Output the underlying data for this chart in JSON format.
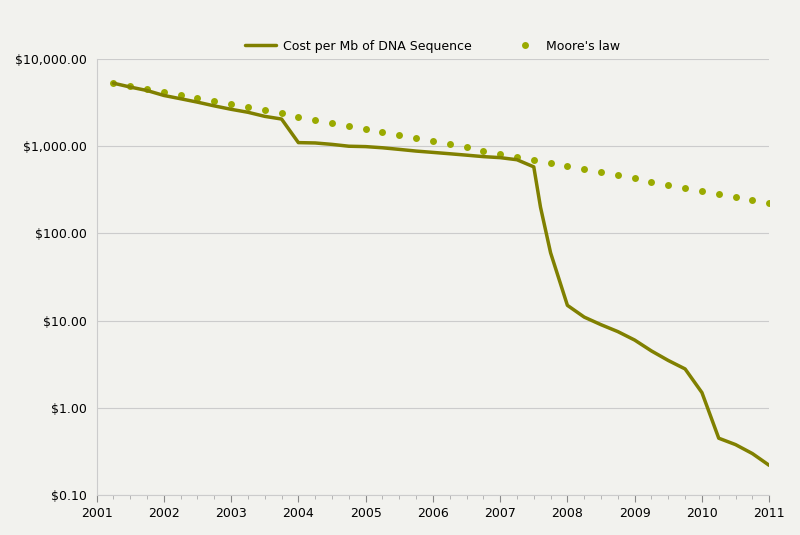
{
  "cost_per_mb": {
    "x": [
      2001.25,
      2001.5,
      2001.75,
      2002.0,
      2002.25,
      2002.5,
      2002.75,
      2003.0,
      2003.25,
      2003.5,
      2003.75,
      2004.0,
      2004.25,
      2004.5,
      2004.75,
      2005.0,
      2005.25,
      2005.5,
      2005.75,
      2006.0,
      2006.25,
      2006.5,
      2006.75,
      2007.0,
      2007.25,
      2007.5,
      2007.6,
      2007.75,
      2008.0,
      2008.25,
      2008.5,
      2008.75,
      2009.0,
      2009.25,
      2009.5,
      2009.75,
      2010.0,
      2010.25,
      2010.5,
      2010.75,
      2011.0
    ],
    "y": [
      5282,
      4768,
      4350,
      3820,
      3500,
      3200,
      2900,
      2650,
      2450,
      2200,
      2050,
      1100,
      1090,
      1050,
      1000,
      990,
      960,
      920,
      880,
      850,
      820,
      790,
      760,
      740,
      700,
      580,
      200,
      60,
      15,
      11,
      9,
      7.5,
      6,
      4.5,
      3.5,
      2.8,
      1.5,
      0.45,
      0.38,
      0.3,
      0.22
    ]
  },
  "moores_law": {
    "x": [
      2001.25,
      2001.5,
      2001.75,
      2002.0,
      2002.25,
      2002.5,
      2002.75,
      2003.0,
      2003.25,
      2003.5,
      2003.75,
      2004.0,
      2004.25,
      2004.5,
      2004.75,
      2005.0,
      2005.25,
      2005.5,
      2005.75,
      2006.0,
      2006.25,
      2006.5,
      2006.75,
      2007.0,
      2007.25,
      2007.5,
      2007.75,
      2008.0,
      2008.25,
      2008.5,
      2008.75,
      2009.0,
      2009.25,
      2009.5,
      2009.75,
      2010.0,
      2010.25,
      2010.5,
      2010.75,
      2011.0
    ],
    "y": [
      5282,
      4900,
      4550,
      4200,
      3880,
      3580,
      3300,
      3040,
      2800,
      2580,
      2380,
      2190,
      2020,
      1860,
      1715,
      1580,
      1455,
      1340,
      1235,
      1140,
      1050,
      967,
      892,
      822,
      757,
      698,
      643,
      593,
      546,
      504,
      464,
      428,
      394,
      363,
      335,
      309,
      284,
      262,
      242,
      223
    ]
  },
  "line_color": "#808000",
  "dot_color": "#9aaa00",
  "background_color": "#f2f2ee",
  "xlim": [
    2001,
    2011
  ],
  "ylim_log": [
    0.1,
    10000
  ],
  "yticks": [
    0.1,
    1.0,
    10.0,
    100.0,
    1000.0,
    10000.0
  ],
  "ytick_labels": [
    "$0.10",
    "$1.00",
    "$10.00",
    "$100.00",
    "$1,000.00",
    "$10,000.00"
  ],
  "xticks": [
    2001,
    2002,
    2003,
    2004,
    2005,
    2006,
    2007,
    2008,
    2009,
    2010,
    2011
  ],
  "legend_label_solid": "Cost per Mb of DNA Sequence",
  "legend_label_dot": "Moore's law",
  "line_width": 2.5,
  "dot_size": 5
}
